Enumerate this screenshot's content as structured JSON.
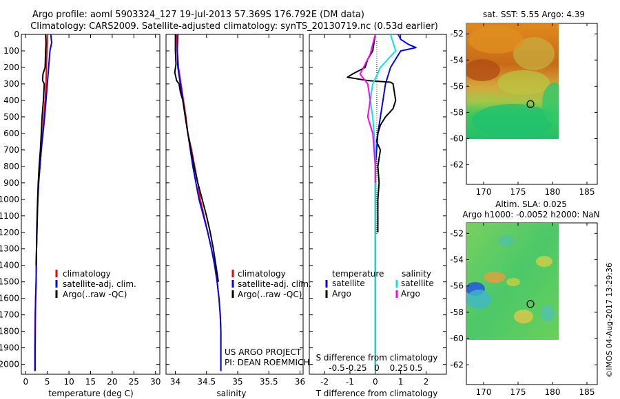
{
  "header": {
    "line1": "Argo profile: aoml 5903324_127 19-Jul-2013 57.369S 176.792E (DM data)",
    "line2": "Climatology: CARS2009. Satellite-adjusted climatology: synTS_20130719.nc (0.53d earlier)"
  },
  "credit": "©IMOS 04-Aug-2017 13:29:36",
  "colors": {
    "climatology": "#ff0000",
    "satellite": "#0000ff",
    "argo": "#000000",
    "sal_satellite": "#00e5e5",
    "sal_argo": "#ff00ff"
  },
  "chart_data": [
    {
      "id": "temperature",
      "type": "line",
      "xlabel": "temperature (deg C)",
      "xlim": [
        -1,
        31
      ],
      "xticks": [
        0,
        5,
        10,
        15,
        20,
        25,
        30
      ],
      "xtick_labels": [
        "0",
        "5",
        "10",
        "15",
        "20",
        "25",
        "30"
      ],
      "ylim": [
        0,
        2060
      ],
      "yticks": [
        0,
        100,
        200,
        300,
        400,
        500,
        600,
        700,
        800,
        900,
        1000,
        1100,
        1200,
        1300,
        1400,
        1500,
        1600,
        1700,
        1800,
        1900,
        2000
      ],
      "legend": [
        "climatology",
        "satellite-adj. clim.",
        "Argo(..raw -QC)"
      ],
      "series": [
        {
          "name": "climatology",
          "color": "#ff0000",
          "x": [
            5.0,
            5.0,
            4.9,
            4.8,
            4.7,
            4.5,
            4.2,
            3.9,
            3.6,
            3.3,
            3.0,
            2.8,
            2.7,
            2.6,
            2.5,
            2.45,
            2.4,
            2.3,
            2.2,
            2.1,
            2.1
          ],
          "y": [
            0,
            50,
            100,
            200,
            300,
            400,
            500,
            600,
            700,
            800,
            900,
            1000,
            1100,
            1200,
            1300,
            1400,
            1500,
            1600,
            1700,
            1900,
            2040
          ]
        },
        {
          "name": "satellite-adj. clim.",
          "color": "#0000ff",
          "x": [
            5.8,
            6.0,
            5.6,
            5.3,
            5.0,
            4.7,
            4.4,
            4.0,
            3.6,
            3.3,
            3.0,
            2.8,
            2.7,
            2.6,
            2.5,
            2.45,
            2.4,
            2.3,
            2.25,
            2.2,
            2.2
          ],
          "y": [
            0,
            50,
            100,
            200,
            300,
            400,
            500,
            600,
            700,
            800,
            900,
            1000,
            1100,
            1200,
            1300,
            1400,
            1500,
            1600,
            1700,
            1900,
            2040
          ]
        },
        {
          "name": "Argo(..raw -QC)",
          "color": "#000000",
          "x": [
            4.6,
            4.7,
            4.6,
            4.5,
            4.0,
            3.9,
            4.3,
            4.1,
            3.8,
            3.6,
            3.4,
            3.1,
            2.9,
            2.75,
            2.65,
            2.55,
            2.5,
            2.4
          ],
          "y": [
            0,
            50,
            100,
            200,
            240,
            280,
            300,
            400,
            500,
            600,
            700,
            800,
            900,
            1000,
            1100,
            1200,
            1300,
            1400
          ]
        }
      ]
    },
    {
      "id": "salinity",
      "type": "line",
      "xlabel": "salinity",
      "xlim": [
        33.85,
        36.05
      ],
      "xticks": [
        34,
        34.5,
        35,
        35.5,
        36
      ],
      "xtick_labels": [
        "34",
        "34.5",
        "35",
        "35.5",
        "36"
      ],
      "ylim": [
        0,
        2060
      ],
      "yticks": [
        0,
        100,
        200,
        300,
        400,
        500,
        600,
        700,
        800,
        900,
        1000,
        1100,
        1200,
        1300,
        1400,
        1500,
        1600,
        1700,
        1800,
        1900,
        2000
      ],
      "legend": [
        "climatology",
        "satellite-adj. clim.",
        "Argo(..raw -QC)"
      ],
      "annotation": [
        "US ARGO PROJECT",
        "PI: DEAN ROEMMICH"
      ],
      "series": [
        {
          "name": "climatology",
          "color": "#ff0000",
          "x": [
            34.02,
            34.03,
            34.05,
            34.09,
            34.13,
            34.17,
            34.2,
            34.26,
            34.31,
            34.36,
            34.4,
            34.46,
            34.52,
            34.58,
            34.63,
            34.67,
            34.7,
            34.72,
            34.73,
            34.73,
            34.73
          ],
          "y": [
            0,
            100,
            200,
            300,
            400,
            500,
            600,
            700,
            800,
            900,
            1000,
            1100,
            1200,
            1300,
            1400,
            1500,
            1600,
            1700,
            1800,
            1950,
            2040
          ]
        },
        {
          "name": "satellite-adj. clim.",
          "color": "#0000ff",
          "x": [
            34.04,
            34.03,
            34.04,
            34.08,
            34.12,
            34.16,
            34.2,
            34.24,
            34.28,
            34.33,
            34.38,
            34.45,
            34.52,
            34.58,
            34.63,
            34.67,
            34.7,
            34.72,
            34.73,
            34.73,
            34.73
          ],
          "y": [
            0,
            100,
            200,
            300,
            400,
            500,
            600,
            700,
            800,
            900,
            1000,
            1100,
            1200,
            1300,
            1400,
            1500,
            1600,
            1700,
            1800,
            1950,
            2040
          ]
        },
        {
          "name": "Argo(..raw -QC)",
          "color": "#000000",
          "x": [
            34.0,
            34.0,
            34.01,
            33.99,
            34.02,
            34.06,
            34.08,
            34.12,
            34.16,
            34.2,
            34.25,
            34.3,
            34.36,
            34.43,
            34.5,
            34.56,
            34.61,
            34.65,
            34.69
          ],
          "y": [
            0,
            100,
            180,
            230,
            280,
            300,
            350,
            400,
            500,
            600,
            700,
            800,
            900,
            1000,
            1100,
            1200,
            1300,
            1400,
            1500
          ]
        }
      ]
    },
    {
      "id": "differences",
      "type": "line",
      "xlabel": "T difference from climatology",
      "xlabel_top": "S difference from climatology",
      "xlim": [
        -2.6,
        2.8
      ],
      "xticks": [
        -2,
        -1,
        0,
        1,
        2
      ],
      "xtick_labels": [
        "-2",
        "-1",
        "0",
        "1",
        "2"
      ],
      "sal_xtick_labels": [
        "-0.5",
        "-0.25",
        "0",
        "0.25",
        "0.5"
      ],
      "ylim": [
        0,
        2060
      ],
      "yticks": [
        0,
        100,
        200,
        300,
        400,
        500,
        600,
        700,
        800,
        900,
        1000,
        1100,
        1200,
        1300,
        1400,
        1500,
        1600,
        1700,
        1800,
        1900,
        2000
      ],
      "legend_headers": [
        "temperature",
        "salinity"
      ],
      "legend": [
        "satellite",
        "Argo",
        "satellite",
        "Argo"
      ],
      "series": [
        {
          "name": "temperature satellite",
          "color": "#0000ff",
          "x": [
            0.9,
            1.0,
            1.3,
            1.6,
            1.0,
            0.6,
            0.4,
            0.3,
            0.2,
            0.1,
            0.05,
            0.0,
            0.0,
            0.0,
            0.0,
            0.0,
            0.0,
            0.0,
            0.0,
            0.0,
            0.0
          ],
          "y": [
            0,
            30,
            60,
            80,
            100,
            200,
            300,
            400,
            500,
            600,
            700,
            800,
            900,
            1000,
            1100,
            1200,
            1400,
            1600,
            1800,
            1900,
            2040
          ]
        },
        {
          "name": "temperature Argo",
          "color": "#000000",
          "x": [
            0.0,
            -0.1,
            -0.3,
            -0.4,
            -0.9,
            -1.1,
            -0.3,
            0.6,
            0.7,
            0.8,
            0.7,
            0.4,
            0.2,
            0.1,
            0.05,
            0.2,
            0.1,
            0.15,
            0.1,
            0.1,
            0.1
          ],
          "y": [
            0,
            100,
            150,
            200,
            240,
            260,
            280,
            290,
            300,
            400,
            450,
            500,
            550,
            600,
            650,
            700,
            800,
            900,
            1000,
            1100,
            1200
          ]
        },
        {
          "name": "salinity satellite",
          "color": "#00e5e5",
          "x": [
            0.6,
            0.8,
            0.5,
            0.2,
            -0.1,
            -0.2,
            -0.1,
            -0.05,
            0.0,
            0.0,
            0.0,
            0.0,
            0.0,
            0.0
          ],
          "y": [
            0,
            100,
            150,
            200,
            300,
            400,
            500,
            600,
            700,
            900,
            1100,
            1400,
            1700,
            2040
          ]
        },
        {
          "name": "salinity Argo",
          "color": "#ff00ff",
          "x": [
            0.0,
            -0.2,
            -0.4,
            -0.6,
            -0.3,
            -0.2,
            -0.3,
            -0.1,
            -0.05,
            0.0,
            0.0
          ],
          "y": [
            0,
            120,
            180,
            240,
            300,
            400,
            500,
            600,
            700,
            800,
            900
          ]
        }
      ]
    },
    {
      "id": "sst_map",
      "type": "heatmap",
      "title": "sat. SST: 5.55 Argo: 4.39",
      "xlim": [
        167.5,
        186.5
      ],
      "ylim": [
        -63.5,
        -51.2
      ],
      "xticks": [
        170,
        175,
        180,
        185
      ],
      "xtick_labels": [
        "170",
        "175",
        "180",
        "185"
      ],
      "yticks": [
        -52,
        -54,
        -56,
        -58,
        -60,
        -62
      ],
      "ytick_labels": [
        "-52",
        "-54",
        "-56",
        "-58",
        "-60",
        "-62"
      ],
      "data_extent": [
        167.5,
        180,
        -60,
        -51.2
      ],
      "argo_position": [
        176.8,
        -57.37
      ]
    },
    {
      "id": "sla_map",
      "type": "heatmap",
      "title_line1": "Altim. SLA: 0.025",
      "title_line2": "Argo h1000: -0.0052 h2000: NaN",
      "xlim": [
        167.5,
        186.5
      ],
      "ylim": [
        -63.5,
        -51.2
      ],
      "xticks": [
        170,
        175,
        180,
        185
      ],
      "xtick_labels": [
        "170",
        "175",
        "180",
        "185"
      ],
      "yticks": [
        -52,
        -54,
        -56,
        -58,
        -60,
        -62
      ],
      "ytick_labels": [
        "-52",
        "-54",
        "-56",
        "-58",
        "-60",
        "-62"
      ],
      "data_extent": [
        167.5,
        180,
        -60,
        -51.2
      ],
      "argo_position": [
        176.8,
        -57.37
      ]
    }
  ]
}
